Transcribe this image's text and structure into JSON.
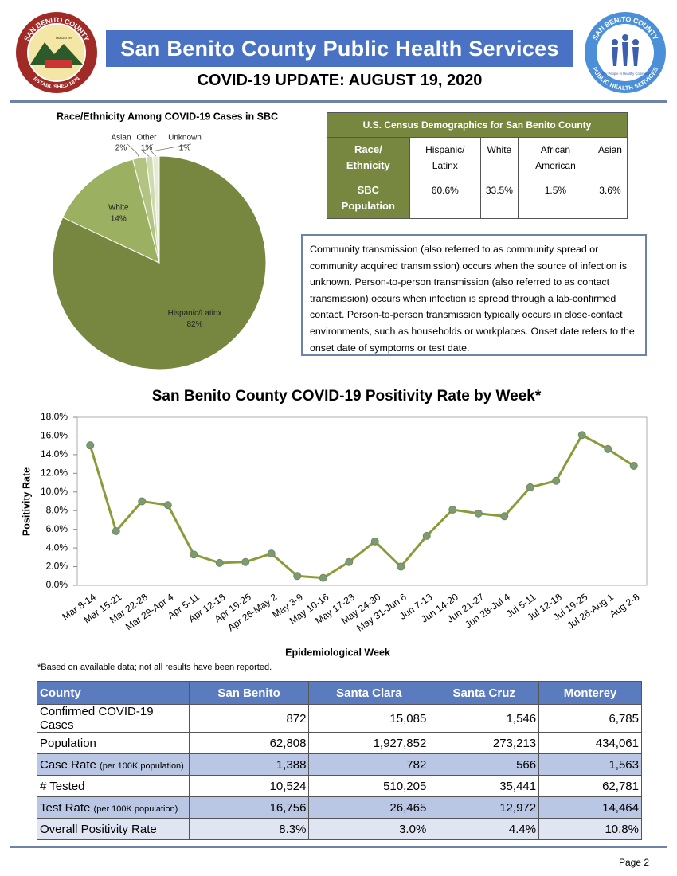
{
  "header": {
    "title": "San Benito County Public Health Services",
    "subtitle": "COVID-19 UPDATE: AUGUST 19, 2020",
    "left_logo": {
      "top": "SAN BENITO COUNTY",
      "center": "HOLLISTER",
      "bottom": "ESTABLISHED 1874"
    },
    "right_logo": {
      "top": "SAN BENITO COUNTY",
      "center": "Healthy People in Healthy Communities",
      "bottom": "PUBLIC HEALTH SERVICES"
    }
  },
  "chart_data": [
    {
      "type": "pie",
      "title": "Race/Ethnicity Among COVID-19 Cases in SBC",
      "categories": [
        "Hispanic/Latinx",
        "White",
        "Asian",
        "Other",
        "Unknown"
      ],
      "values": [
        82,
        14,
        2,
        1,
        1
      ],
      "value_labels": [
        "82%",
        "14%",
        "2%",
        "1%",
        "1%"
      ],
      "colors": [
        "#77873f",
        "#9bb060",
        "#b3c482",
        "#cfd9ae",
        "#e6ebd6"
      ]
    },
    {
      "type": "line",
      "title": "San Benito County COVID-19 Positivity Rate by Week*",
      "x_label": "Epidemiological Week",
      "y_label": "Positivity Rate",
      "categories": [
        "Mar 8-14",
        "Mar 15-21",
        "Mar 22-28",
        "Mar 29-Apr 4",
        "Apr 5-11",
        "Apr 12-18",
        "Apr 19-25",
        "Apr 26-May 2",
        "May 3-9",
        "May 10-16",
        "May 17-23",
        "May 24-30",
        "May 31-Jun 6",
        "Jun 7-13",
        "Jun 14-20",
        "Jun 21-27",
        "Jun 28-Jul 4",
        "Jul 5-11",
        "Jul 12-18",
        "Jul 19-25",
        "Jul 26-Aug 1",
        "Aug 2-8"
      ],
      "values": [
        15.0,
        5.8,
        9.0,
        8.6,
        3.3,
        2.4,
        2.5,
        3.4,
        1.0,
        0.8,
        2.5,
        4.7,
        2.0,
        5.3,
        8.1,
        7.7,
        7.4,
        10.5,
        11.2,
        16.1,
        14.6,
        12.8
      ],
      "color": "#8a9b3a",
      "marker_color": "#7d9a72",
      "ylim": [
        0,
        18
      ],
      "yticks": [
        {
          "value": 0,
          "label": "0.0%"
        },
        {
          "value": 2,
          "label": "2.0%"
        },
        {
          "value": 4,
          "label": "4.0%"
        },
        {
          "value": 6,
          "label": "6.0%"
        },
        {
          "value": 8,
          "label": "8.0%"
        },
        {
          "value": 10,
          "label": "10.0%"
        },
        {
          "value": 12,
          "label": "12.0%"
        },
        {
          "value": 14,
          "label": "14.0%"
        },
        {
          "value": 16,
          "label": "16.0%"
        },
        {
          "value": 18,
          "label": "18.0%"
        }
      ],
      "grid": false
    }
  ],
  "census_table": {
    "title": "U.S. Census Demographics for San Benito County",
    "columns": [
      "Race/ Ethnicity",
      "Hispanic/ Latinx",
      "White",
      "African American",
      "Asian"
    ],
    "rows": [
      [
        "SBC Population",
        "60.6%",
        "33.5%",
        "1.5%",
        "3.6%"
      ]
    ]
  },
  "note": "Community transmission (also referred to as community spread or community acquired transmission) occurs when the source of infection is unknown.  Person-to-person transmission (also referred to as contact transmission) occurs when infection is spread through a lab-confirmed contact.  Person-to-person transmission typically occurs in close-contact environments, such as households or workplaces.  Onset date refers to the onset date of symptoms or test date.",
  "footnote": "*Based on available data; not all results have been reported.",
  "county_table": {
    "columns": [
      "County",
      "San Benito",
      "Santa Clara",
      "Santa Cruz",
      "Monterey"
    ],
    "rows": [
      {
        "label": "Confirmed COVID-19 Cases",
        "cells": [
          "872",
          "15,085",
          "1,546",
          "6,785"
        ]
      },
      {
        "label": "Population",
        "cells": [
          "62,808",
          "1,927,852",
          "273,213",
          "434,061"
        ]
      },
      {
        "label": "Case Rate",
        "qualifier": "(per 100K population)",
        "cells": [
          "1,388",
          "782",
          "566",
          "1,563"
        ]
      },
      {
        "label": "# Tested",
        "cells": [
          "10,524",
          "510,205",
          "35,441",
          "62,781"
        ]
      },
      {
        "label": "Test Rate",
        "qualifier": "(per 100K population)",
        "cells": [
          "16,756",
          "26,465",
          "12,972",
          "14,464"
        ]
      },
      {
        "label": "Overall Positivity Rate",
        "cells": [
          "8.3%",
          "3.0%",
          "4.4%",
          "10.8%"
        ]
      }
    ]
  },
  "footer": {
    "page": "Page 2"
  }
}
